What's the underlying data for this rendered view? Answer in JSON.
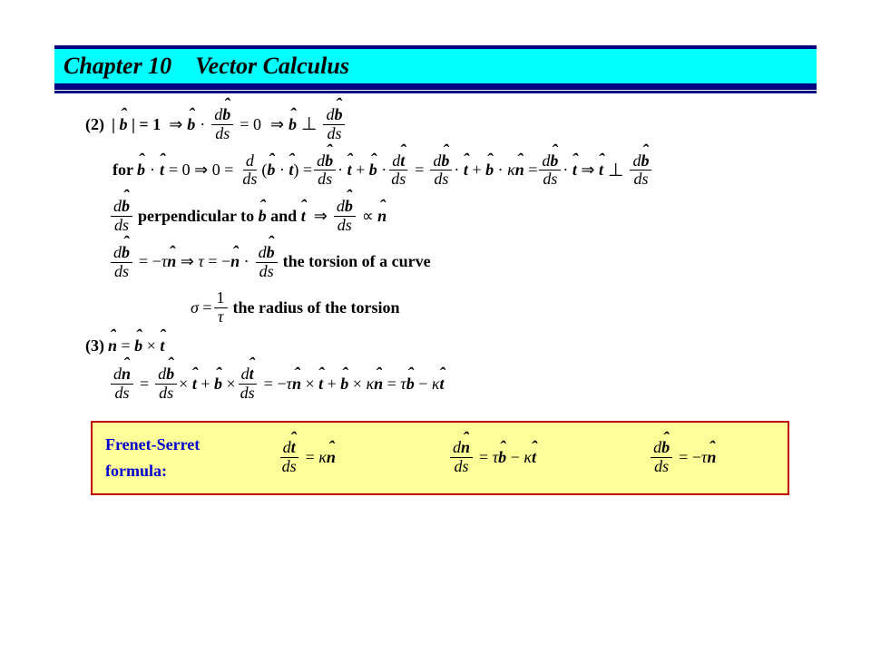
{
  "header": {
    "chapter_label": "Chapter 10",
    "chapter_title": "Vector Calculus",
    "header_bg": "#00ffff",
    "header_border": "#000080"
  },
  "content": {
    "item2_label": "(2)",
    "line1_parts": {
      "b_mag": "| b̂ | = 1",
      "implies": "⇒",
      "b_dot": "b̂ ·",
      "eq0": "= 0",
      "b_perp": "b̂ ⊥"
    },
    "line2_parts": {
      "for": "for",
      "bt0": "b̂ · t̂ = 0 ⇒ 0 =",
      "eq": "=",
      "kn": "κ n̂",
      "perp": "⇒ t̂ ⊥"
    },
    "line3_text": "perpendicular to b̂ and t̂  ⇒",
    "line3_end": "∝ n̂",
    "line4_txt1": "= − τ n̂  ⇒  τ = − n̂ ·",
    "line4_txt2": "the torsion of a curve",
    "sigma": "σ =",
    "sigma_txt": "the radius of the torsion",
    "item3_label": "(3)",
    "item3_eq": "n̂ = b̂ × t̂",
    "line6_mid": "= − τ n̂ × t̂ + b̂ × κ n̂ = τ b̂ − κ t̂"
  },
  "derivatives": {
    "db_ds": {
      "num": "d b̂",
      "den": "ds"
    },
    "dt_ds": {
      "num": "d t̂",
      "den": "ds"
    },
    "dn_ds": {
      "num": "d n̂",
      "den": "ds"
    },
    "d_ds": {
      "num": "d",
      "den": "ds"
    },
    "one_tau": {
      "num": "1",
      "den": "τ"
    }
  },
  "formula_box": {
    "label_line1": "Frenet-Serret",
    "label_line2": "formula:",
    "eq1_rhs": "= κ n̂",
    "eq2_rhs": "= τ b̂ − κ t̂",
    "eq3_rhs": "= − τ n̂",
    "box_border": "#c00000",
    "box_bg": "#ffff99",
    "label_color": "#0000cc"
  },
  "typography": {
    "body_fontsize": 18,
    "title_fontsize": 26,
    "font_family": "Times New Roman"
  }
}
